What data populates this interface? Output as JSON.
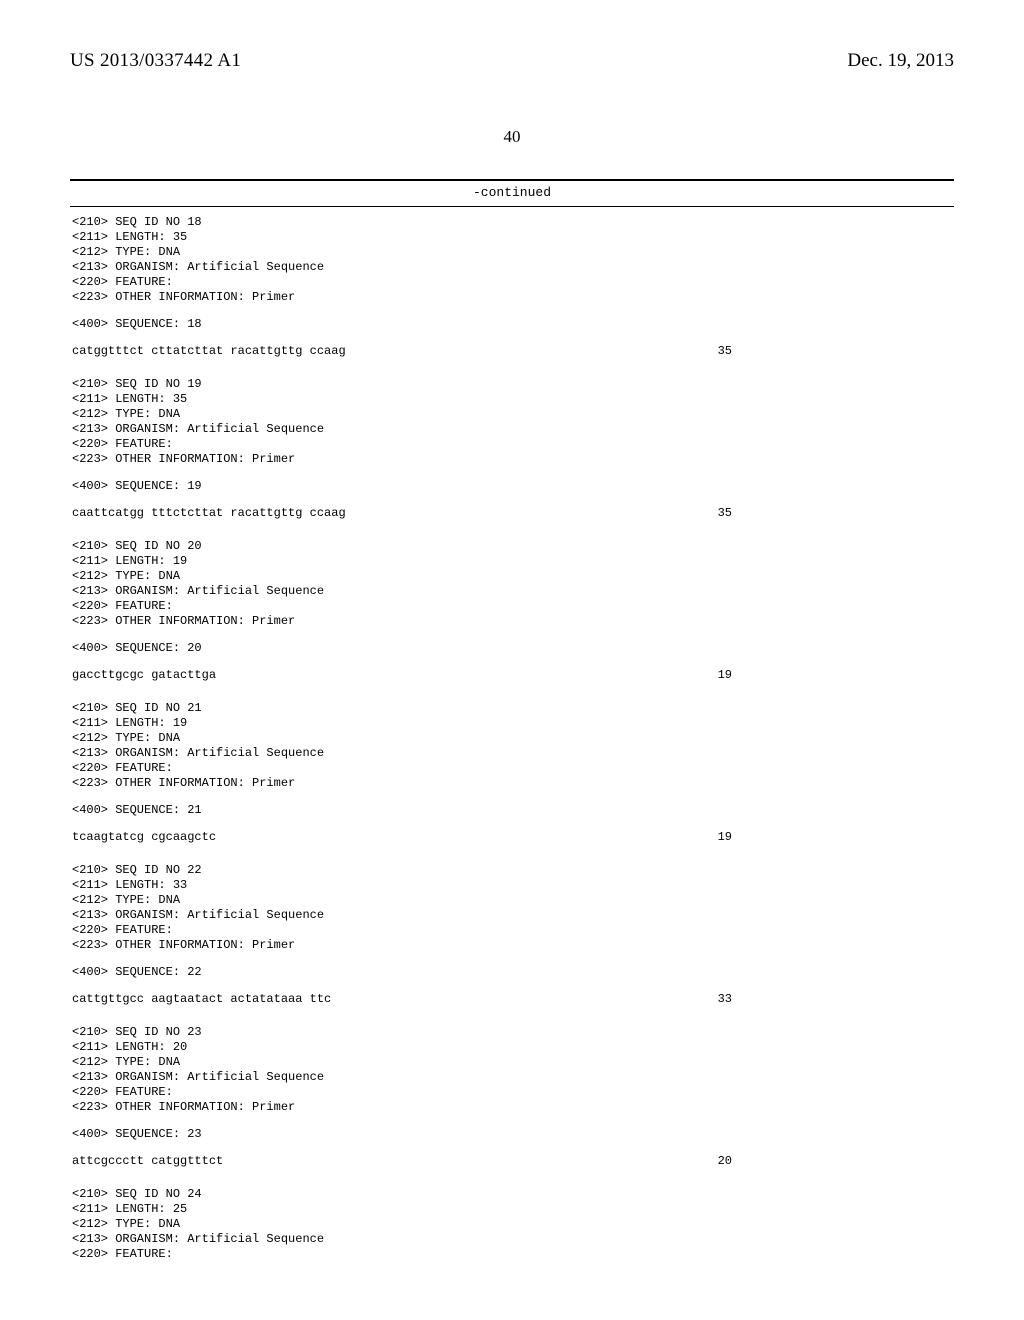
{
  "header": {
    "publication_number": "US 2013/0337442 A1",
    "publication_date": "Dec. 19, 2013"
  },
  "page_number": "40",
  "continued_label": "-continued",
  "entries": [
    {
      "seq_id": "18",
      "length": "35",
      "type": "DNA",
      "organism": "Artificial Sequence",
      "other_information": "Primer",
      "sequence_num": "18",
      "sequence": "catggtttct cttatcttat racattgttg ccaag",
      "seq_len": "35"
    },
    {
      "seq_id": "19",
      "length": "35",
      "type": "DNA",
      "organism": "Artificial Sequence",
      "other_information": "Primer",
      "sequence_num": "19",
      "sequence": "caattcatgg tttctcttat racattgttg ccaag",
      "seq_len": "35"
    },
    {
      "seq_id": "20",
      "length": "19",
      "type": "DNA",
      "organism": "Artificial Sequence",
      "other_information": "Primer",
      "sequence_num": "20",
      "sequence": "gaccttgcgc gatacttga",
      "seq_len": "19"
    },
    {
      "seq_id": "21",
      "length": "19",
      "type": "DNA",
      "organism": "Artificial Sequence",
      "other_information": "Primer",
      "sequence_num": "21",
      "sequence": "tcaagtatcg cgcaagctc",
      "seq_len": "19"
    },
    {
      "seq_id": "22",
      "length": "33",
      "type": "DNA",
      "organism": "Artificial Sequence",
      "other_information": "Primer",
      "sequence_num": "22",
      "sequence": "cattgttgcc aagtaatact actatataaa ttc",
      "seq_len": "33"
    },
    {
      "seq_id": "23",
      "length": "20",
      "type": "DNA",
      "organism": "Artificial Sequence",
      "other_information": "Primer",
      "sequence_num": "23",
      "sequence": "attcgccctt catggtttct",
      "seq_len": "20"
    },
    {
      "seq_id": "24",
      "length": "25",
      "type": "DNA",
      "organism": "Artificial Sequence",
      "other_information": null,
      "sequence_num": null,
      "sequence": null,
      "seq_len": null
    }
  ],
  "labels": {
    "seq_id_prefix": "<210> SEQ ID NO ",
    "length_prefix": "<211> LENGTH: ",
    "type_prefix": "<212> TYPE: ",
    "organism_prefix": "<213> ORGANISM: ",
    "feature_line": "<220> FEATURE:",
    "other_info_prefix": "<223> OTHER INFORMATION: ",
    "sequence_prefix": "<400> SEQUENCE: "
  }
}
